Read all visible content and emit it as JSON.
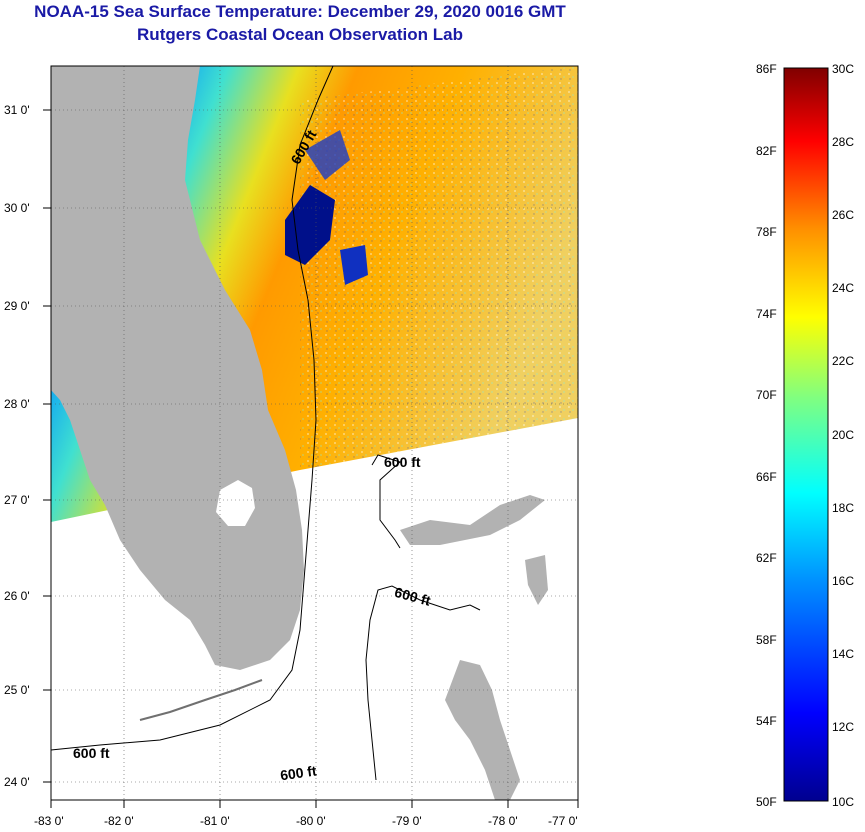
{
  "header": {
    "title": "NOAA-15 Sea Surface Temperature:  December 29, 2020 0016 GMT",
    "subtitle": "Rutgers Coastal Ocean Observation Lab"
  },
  "map": {
    "lon_ticks": [
      "-83 0'",
      "-82 0'",
      "-81 0'",
      "-80 0'",
      "-79 0'",
      "-78 0'",
      "-77 0'"
    ],
    "lat_ticks": [
      "31 0'",
      "30 0'",
      "29 0'",
      "28 0'",
      "27 0'",
      "26 0'",
      "25 0'",
      "24 0'"
    ],
    "contour_labels": [
      "600 ft",
      "600 ft",
      "600 ft",
      "600 ft",
      "600 ft"
    ]
  },
  "colorbar": {
    "fahrenheit": [
      "86F",
      "82F",
      "78F",
      "74F",
      "70F",
      "66F",
      "62F",
      "58F",
      "54F",
      "50F"
    ],
    "celsius": [
      "30C",
      "28C",
      "26C",
      "24C",
      "22C",
      "20C",
      "18C",
      "16C",
      "14C",
      "12C",
      "10C"
    ]
  },
  "colors": {
    "title": "#1a1aa6",
    "land": "#b2b2b2",
    "no_data": "#ffffff",
    "cold": "#00008f",
    "warm": "#ff7f00",
    "hot": "#800000"
  }
}
